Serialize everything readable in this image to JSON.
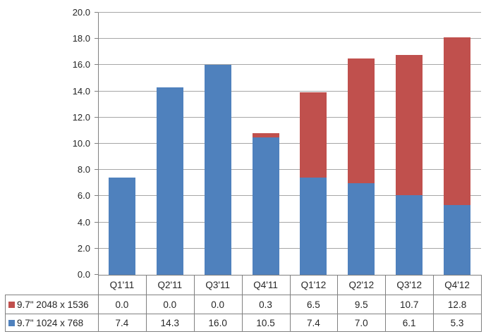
{
  "chart_data": {
    "type": "bar",
    "stacked": true,
    "title": "",
    "xlabel": "",
    "ylabel": "",
    "categories": [
      "Q1'11",
      "Q2'11",
      "Q3'11",
      "Q4'11",
      "Q1'12",
      "Q2'12",
      "Q3'12",
      "Q4'12"
    ],
    "series": [
      {
        "name": "9.7\" 2048 x 1536",
        "color": "#C0504D",
        "stack_level": "top",
        "values": [
          0.0,
          0.0,
          0.0,
          0.3,
          6.5,
          9.5,
          10.7,
          12.8
        ]
      },
      {
        "name": "9.7\" 1024 x 768",
        "color": "#4F81BD",
        "stack_level": "bottom",
        "values": [
          7.4,
          14.3,
          16.0,
          10.5,
          7.4,
          7.0,
          6.1,
          5.3
        ]
      }
    ],
    "ylim": [
      0,
      20
    ],
    "ytick_step": 2,
    "ytick_decimals": 1,
    "value_decimals": 1,
    "grid": true,
    "legend_position": "data-table-below-chart",
    "colors": {
      "gridline": "#a6a6a6",
      "axis": "#808080",
      "table_border": "#808080",
      "text": "#262626",
      "background": "#ffffff"
    }
  }
}
